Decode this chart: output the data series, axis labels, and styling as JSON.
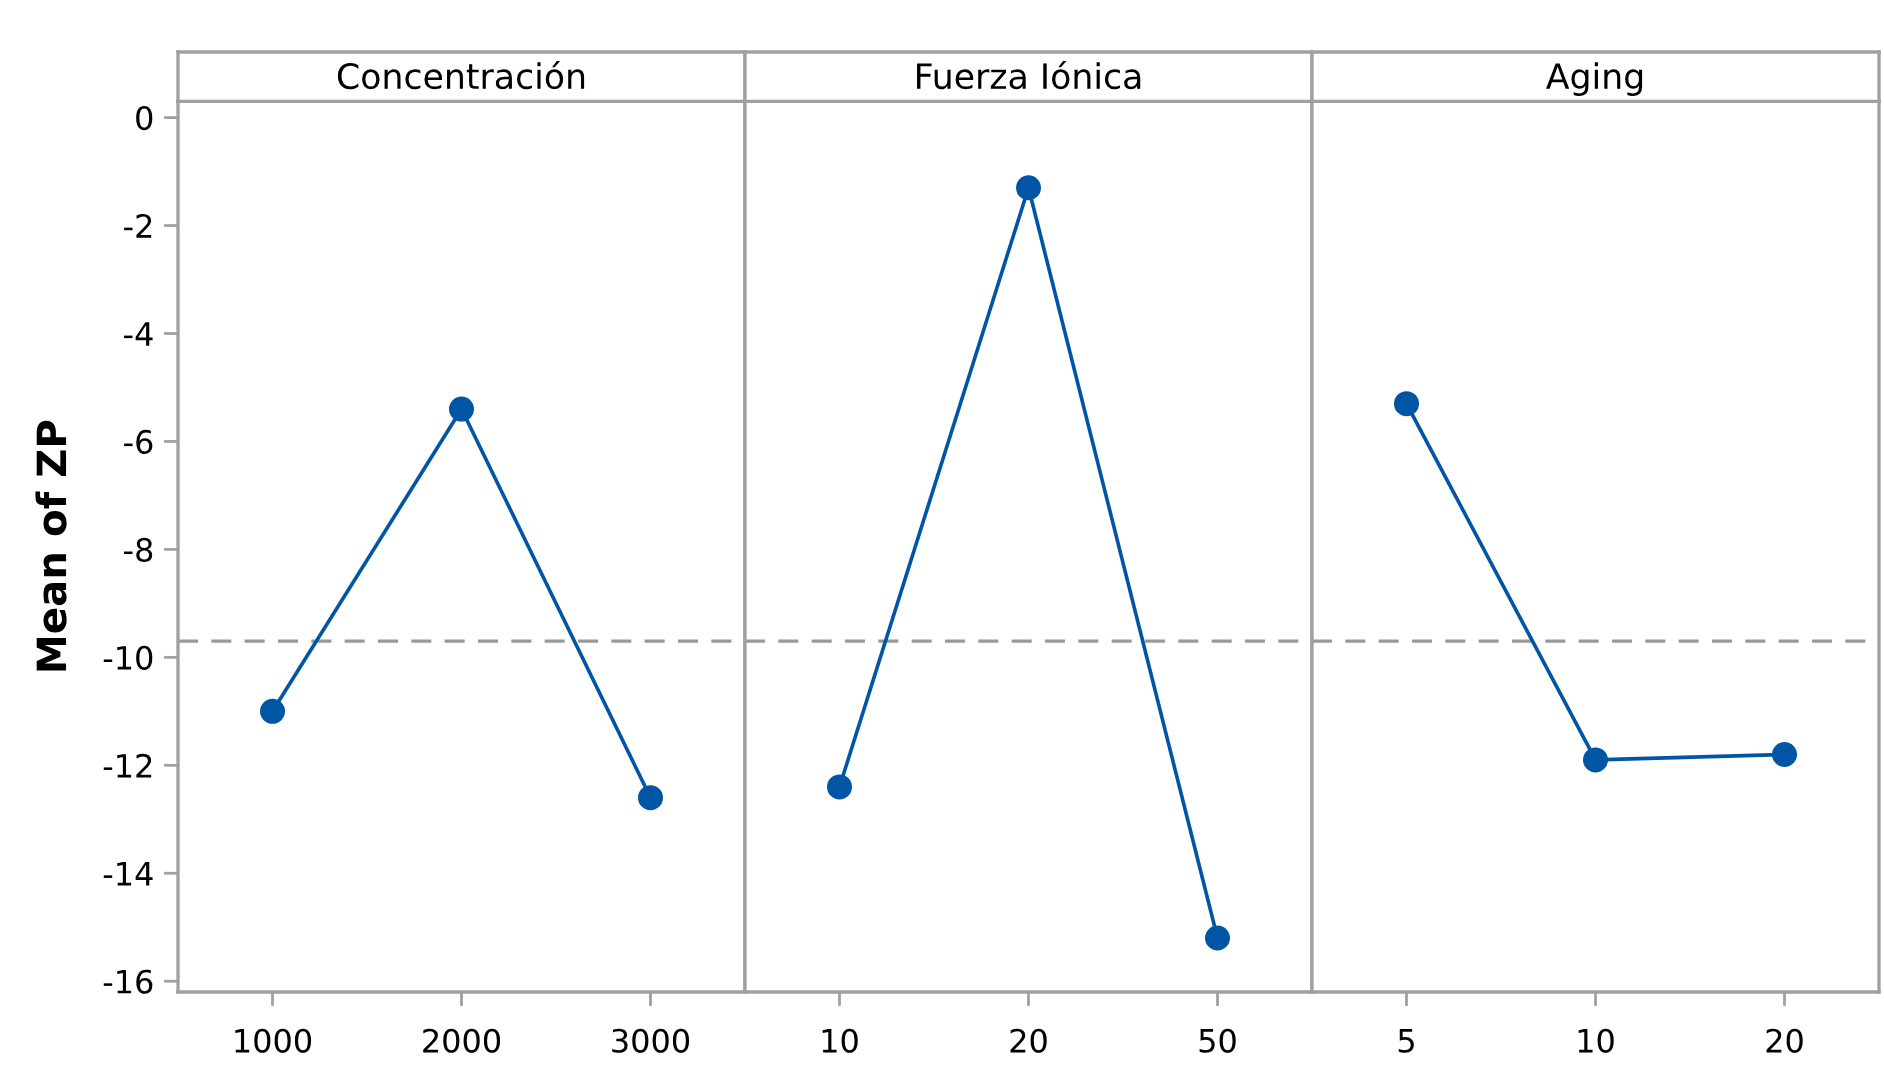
{
  "chart_data": [
    {
      "type": "line",
      "title": "Concentración",
      "ylabel": "Mean of ZP",
      "categories": [
        "1000",
        "2000",
        "3000"
      ],
      "series": [
        {
          "color": "#0055a5",
          "values": [
            -11.0,
            -5.4,
            -12.6
          ]
        }
      ],
      "marker": "circle",
      "line_style": "solid",
      "ylim": [
        -16.2,
        0.3
      ],
      "yticks": [
        0,
        -2,
        -4,
        -6,
        -8,
        -10,
        -12,
        -14,
        -16
      ],
      "ref_lines": [
        {
          "axis": "y",
          "value": -9.7,
          "color": "#999999",
          "line_style": "dashed"
        }
      ]
    },
    {
      "type": "line",
      "title": "Fuerza Iónica",
      "categories": [
        "10",
        "20",
        "50"
      ],
      "series": [
        {
          "color": "#0055a5",
          "values": [
            -12.4,
            -1.3,
            -15.2
          ]
        }
      ],
      "marker": "circle",
      "line_style": "solid",
      "ylim": [
        -16.2,
        0.3
      ],
      "tick_labels": "x",
      "ref_lines": [
        {
          "axis": "y",
          "value": -9.7,
          "color": "#999999",
          "line_style": "dashed"
        }
      ]
    },
    {
      "type": "line",
      "title": "Aging",
      "categories": [
        "5",
        "10",
        "20"
      ],
      "series": [
        {
          "color": "#0055a5",
          "values": [
            -5.3,
            -11.9,
            -11.8
          ]
        }
      ],
      "marker": "circle",
      "line_style": "solid",
      "ylim": [
        -16.2,
        0.3
      ],
      "tick_labels": "x",
      "ref_lines": [
        {
          "axis": "y",
          "value": -9.7,
          "color": "#999999",
          "line_style": "dashed"
        }
      ]
    }
  ]
}
